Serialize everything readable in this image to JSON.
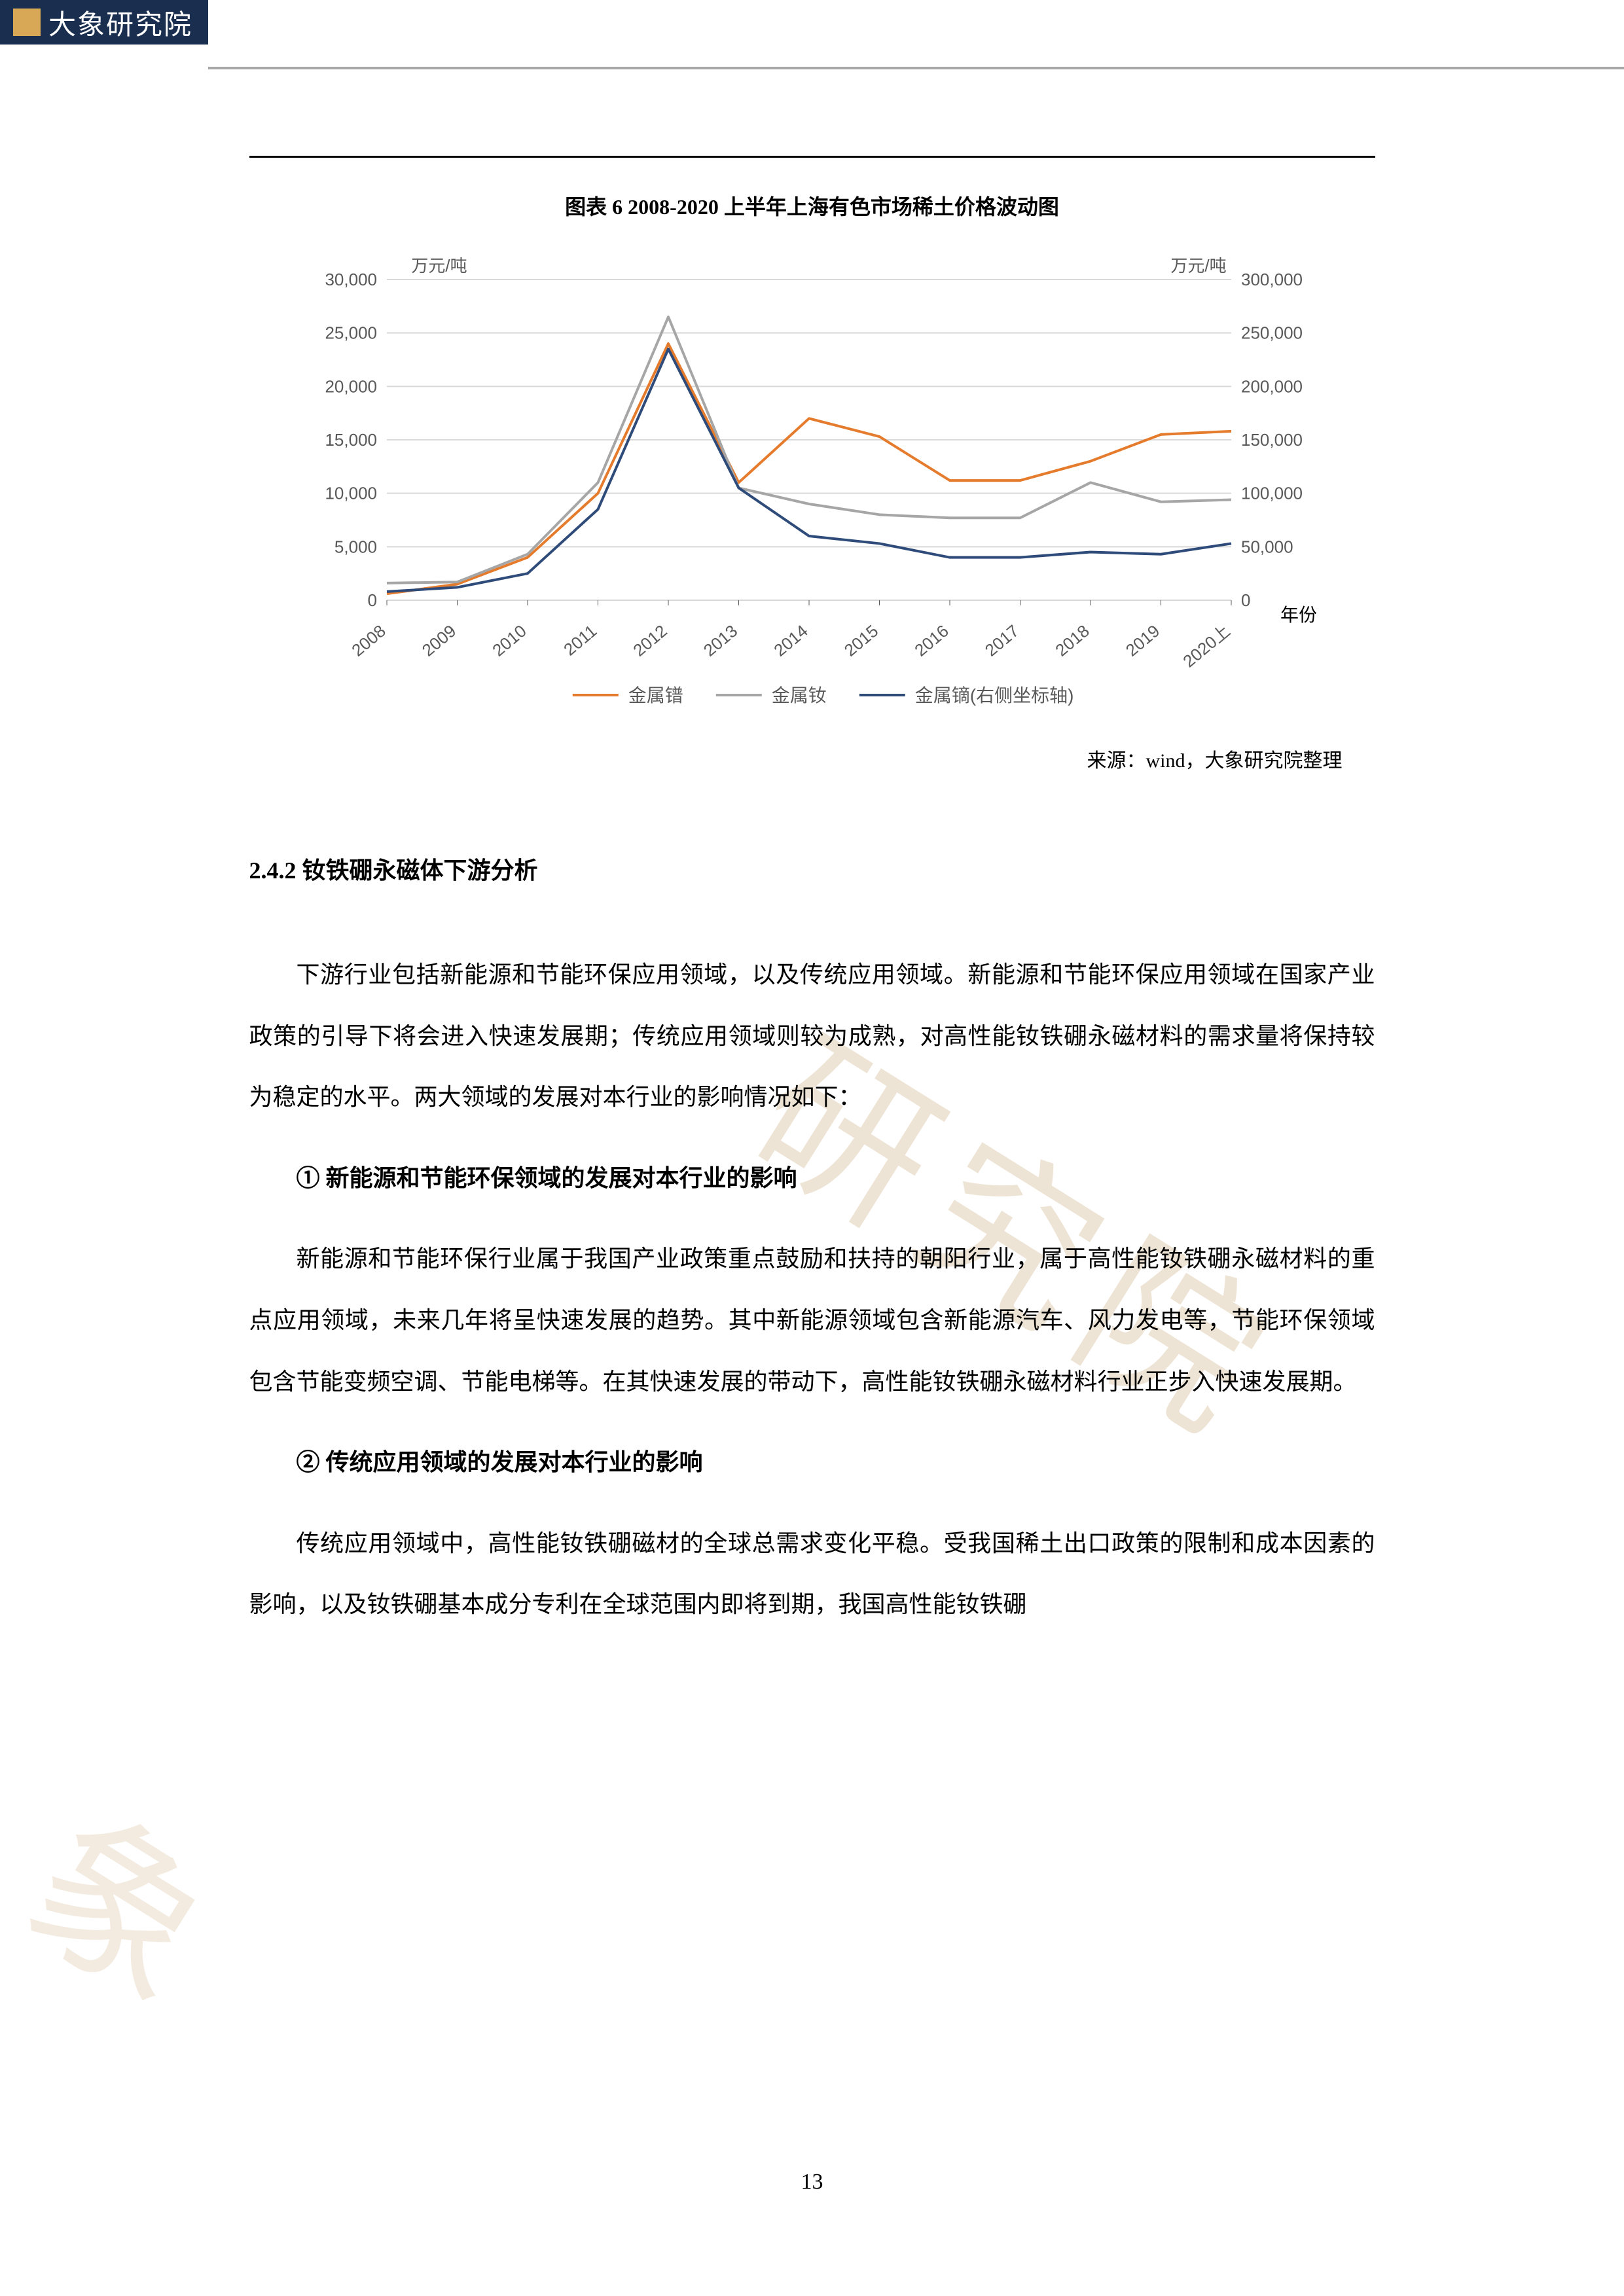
{
  "header": {
    "brand": "大象研究院"
  },
  "chart": {
    "title": "图表 6 2008-2020 上半年上海有色市场稀土价格波动图",
    "type": "line",
    "left_axis_label": "万元/吨",
    "right_axis_label": "万元/吨",
    "x_axis_label": "年份",
    "categories": [
      "2008",
      "2009",
      "2010",
      "2011",
      "2012",
      "2013",
      "2014",
      "2015",
      "2016",
      "2017",
      "2018",
      "2019",
      "2020上"
    ],
    "left_ylim": [
      0,
      30000
    ],
    "left_ytick_step": 5000,
    "left_yticklabels": [
      "0",
      "5,000",
      "10,000",
      "15,000",
      "20,000",
      "25,000",
      "30,000"
    ],
    "right_ylim": [
      0,
      300000
    ],
    "right_ytick_step": 50000,
    "right_yticklabels": [
      "0",
      "50,000",
      "100,000",
      "150,000",
      "200,000",
      "250,000",
      "300,000"
    ],
    "series": [
      {
        "name": "金属镨",
        "axis": "left",
        "color": "#e57b2c",
        "width": 4,
        "values": [
          600,
          1500,
          4000,
          10000,
          24000,
          11000,
          17000,
          15300,
          11200,
          11200,
          13000,
          15500,
          15800
        ]
      },
      {
        "name": "金属钕",
        "axis": "left",
        "color": "#a6a6a6",
        "width": 4,
        "values": [
          1600,
          1700,
          4300,
          11000,
          26500,
          10500,
          9000,
          8000,
          7700,
          7700,
          11000,
          9200,
          9400
        ]
      },
      {
        "name": "金属镝(右侧坐标轴)",
        "axis": "right",
        "color": "#2e4b7a",
        "width": 4,
        "values": [
          8000,
          12000,
          25000,
          85000,
          235000,
          105000,
          60000,
          53000,
          40000,
          40000,
          45000,
          43000,
          53000
        ]
      }
    ],
    "grid_color": "#d9d9d9",
    "axis_text_color": "#595959",
    "background_color": "#ffffff",
    "source": "来源：wind，大象研究院整理"
  },
  "section": {
    "heading": "2.4.2 钕铁硼永磁体下游分析",
    "para1": "下游行业包括新能源和节能环保应用领域，以及传统应用领域。新能源和节能环保应用领域在国家产业政策的引导下将会进入快速发展期；传统应用领域则较为成熟，对高性能钕铁硼永磁材料的需求量将保持较为稳定的水平。两大领域的发展对本行业的影响情况如下：",
    "sub1_title": "① 新能源和节能环保领域的发展对本行业的影响",
    "sub1_para": "新能源和节能环保行业属于我国产业政策重点鼓励和扶持的朝阳行业，属于高性能钕铁硼永磁材料的重点应用领域，未来几年将呈快速发展的趋势。其中新能源领域包含新能源汽车、风力发电等，节能环保领域包含节能变频空调、节能电梯等。在其快速发展的带动下，高性能钕铁硼永磁材料行业正步入快速发展期。",
    "sub2_title": "② 传统应用领域的发展对本行业的影响",
    "sub2_para": "传统应用领域中，高性能钕铁硼磁材的全球总需求变化平稳。受我国稀土出口政策的限制和成本因素的影响，以及钕铁硼基本成分专利在全球范围内即将到期，我国高性能钕铁硼"
  },
  "watermark_text": "研究院",
  "watermark2_text": "象",
  "page_number": "13"
}
